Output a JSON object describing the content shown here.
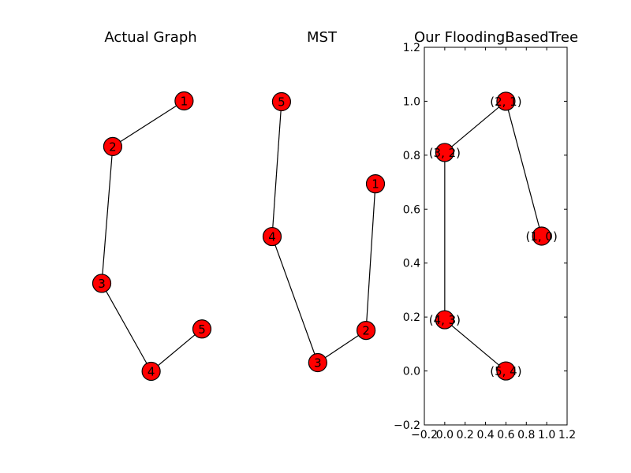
{
  "chart_data": [
    {
      "type": "network",
      "title": "Actual Graph",
      "node_color": "#ff0000",
      "nodes": [
        {
          "id": "1",
          "label": "1",
          "x": 0.82,
          "y": 0.87
        },
        {
          "id": "2",
          "label": "2",
          "x": 0.3,
          "y": 0.73
        },
        {
          "id": "3",
          "label": "3",
          "x": 0.22,
          "y": 0.31
        },
        {
          "id": "4",
          "label": "4",
          "x": 0.58,
          "y": 0.04
        },
        {
          "id": "5",
          "label": "5",
          "x": 0.95,
          "y": 0.17
        }
      ],
      "edges": [
        [
          "1",
          "2"
        ],
        [
          "2",
          "3"
        ],
        [
          "3",
          "4"
        ],
        [
          "4",
          "5"
        ]
      ]
    },
    {
      "type": "network",
      "title": "MST",
      "node_color": "#ff0000",
      "nodes": [
        {
          "id": "5",
          "label": "5",
          "x": 0.25,
          "y": 0.92
        },
        {
          "id": "4",
          "label": "4",
          "x": 0.18,
          "y": 0.46
        },
        {
          "id": "1",
          "label": "1",
          "x": 0.95,
          "y": 0.64
        },
        {
          "id": "2",
          "label": "2",
          "x": 0.88,
          "y": 0.14
        },
        {
          "id": "3",
          "label": "3",
          "x": 0.52,
          "y": 0.03
        }
      ],
      "edges": [
        [
          "5",
          "4"
        ],
        [
          "4",
          "3"
        ],
        [
          "3",
          "2"
        ],
        [
          "2",
          "1"
        ]
      ]
    },
    {
      "type": "network",
      "title": "Our FloodingBasedTree",
      "node_color": "#ff0000",
      "xlim": [
        -0.2,
        1.2
      ],
      "ylim": [
        -0.2,
        1.2
      ],
      "xticks": [
        -0.2,
        0.0,
        0.2,
        0.4,
        0.6,
        0.8,
        1.0,
        1.2
      ],
      "xtick_labels": [
        "−0.2",
        "0.0",
        "0.2",
        "0.4",
        "0.6",
        "0.8",
        "1.0",
        "1.2"
      ],
      "yticks": [
        -0.2,
        0.0,
        0.2,
        0.4,
        0.6,
        0.8,
        1.0,
        1.2
      ],
      "ytick_labels": [
        "−0.2",
        "0.0",
        "0.2",
        "0.4",
        "0.6",
        "0.8",
        "1.0",
        "1.2"
      ],
      "nodes": [
        {
          "id": "2,1",
          "label": "(2, 1)",
          "x": 0.6,
          "y": 1.0
        },
        {
          "id": "3,2",
          "label": "(3, 2)",
          "x": 0.0,
          "y": 0.81
        },
        {
          "id": "1,0",
          "label": "(1, 0)",
          "x": 0.95,
          "y": 0.5
        },
        {
          "id": "4,3",
          "label": "(4, 3)",
          "x": 0.0,
          "y": 0.19
        },
        {
          "id": "5,4",
          "label": "(5, 4)",
          "x": 0.6,
          "y": 0.0
        }
      ],
      "edges": [
        [
          "2,1",
          "3,2"
        ],
        [
          "2,1",
          "1,0"
        ],
        [
          "3,2",
          "4,3"
        ],
        [
          "4,3",
          "5,4"
        ]
      ]
    }
  ]
}
